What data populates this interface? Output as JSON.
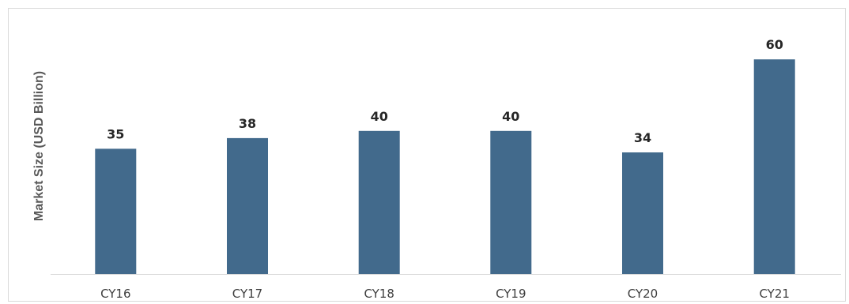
{
  "chart_data": {
    "type": "bar",
    "title": "",
    "xlabel": "",
    "ylabel": "Market Size (USD Billion)",
    "categories": [
      "CY16",
      "CY17",
      "CY18",
      "CY19",
      "CY20",
      "CY21"
    ],
    "values": [
      35,
      38,
      40,
      40,
      34,
      60
    ],
    "data_labels": [
      "35",
      "38",
      "40",
      "40",
      "34",
      "60"
    ],
    "ylim": [
      0,
      65
    ],
    "grid": false,
    "legend": "none",
    "bar_color": "#426A8C"
  }
}
